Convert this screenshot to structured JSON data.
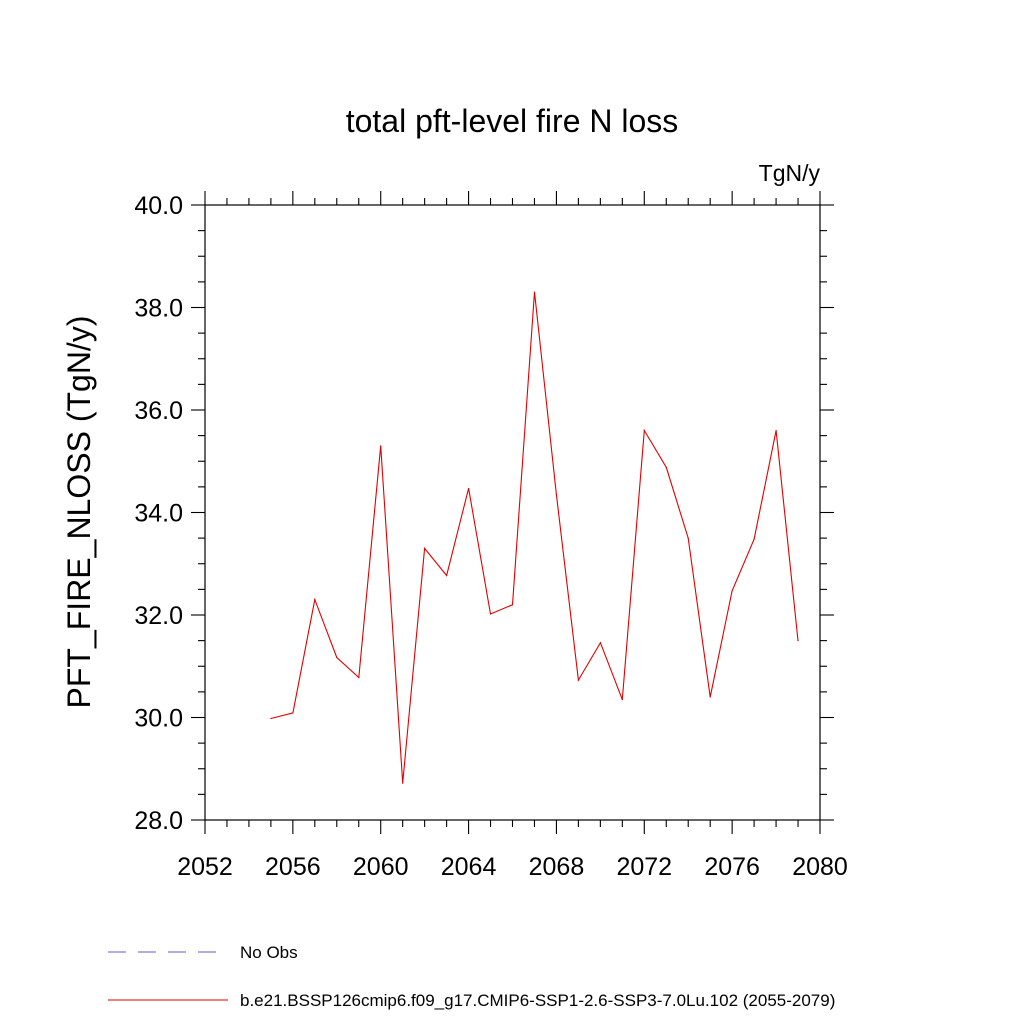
{
  "chart_data": {
    "type": "line",
    "title": "total pft-level fire N loss",
    "units_label": "TgN/y",
    "ylabel": "PFT_FIRE_NLOSS  (TgN/y)",
    "xlabel": "",
    "xlim": [
      2052,
      2080
    ],
    "ylim": [
      28.0,
      40.0
    ],
    "x_ticks": [
      "2052",
      "2056",
      "2060",
      "2064",
      "2068",
      "2072",
      "2076",
      "2080"
    ],
    "y_ticks": [
      "28.0",
      "30.0",
      "32.0",
      "34.0",
      "36.0",
      "38.0",
      "40.0"
    ],
    "grid": false,
    "legend_position": "bottom",
    "series": [
      {
        "name": "b.e21.BSSP126cmip6.f09_g17.CMIP6-SSP1-2.6-SSP3-7.0Lu.102 (2055-2079)",
        "color": "#e00000",
        "style": "solid",
        "x": [
          2055,
          2056,
          2057,
          2058,
          2059,
          2060,
          2061,
          2062,
          2063,
          2064,
          2065,
          2066,
          2067,
          2068,
          2069,
          2070,
          2071,
          2072,
          2073,
          2074,
          2075,
          2076,
          2077,
          2078,
          2079
        ],
        "y": [
          29.98,
          30.09,
          32.3,
          31.17,
          30.78,
          35.3,
          28.72,
          33.3,
          32.77,
          34.47,
          32.02,
          32.2,
          38.3,
          34.35,
          30.73,
          31.46,
          30.35,
          35.6,
          34.88,
          33.5,
          30.4,
          32.47,
          33.48,
          35.6,
          31.5
        ]
      }
    ],
    "legend": [
      {
        "label": "No Obs",
        "color": "#6a5acd",
        "style": "dashed"
      },
      {
        "label": "b.e21.BSSP126cmip6.f09_g17.CMIP6-SSP1-2.6-SSP3-7.0Lu.102 (2055-2079)",
        "color": "#e00000",
        "style": "solid"
      }
    ]
  }
}
